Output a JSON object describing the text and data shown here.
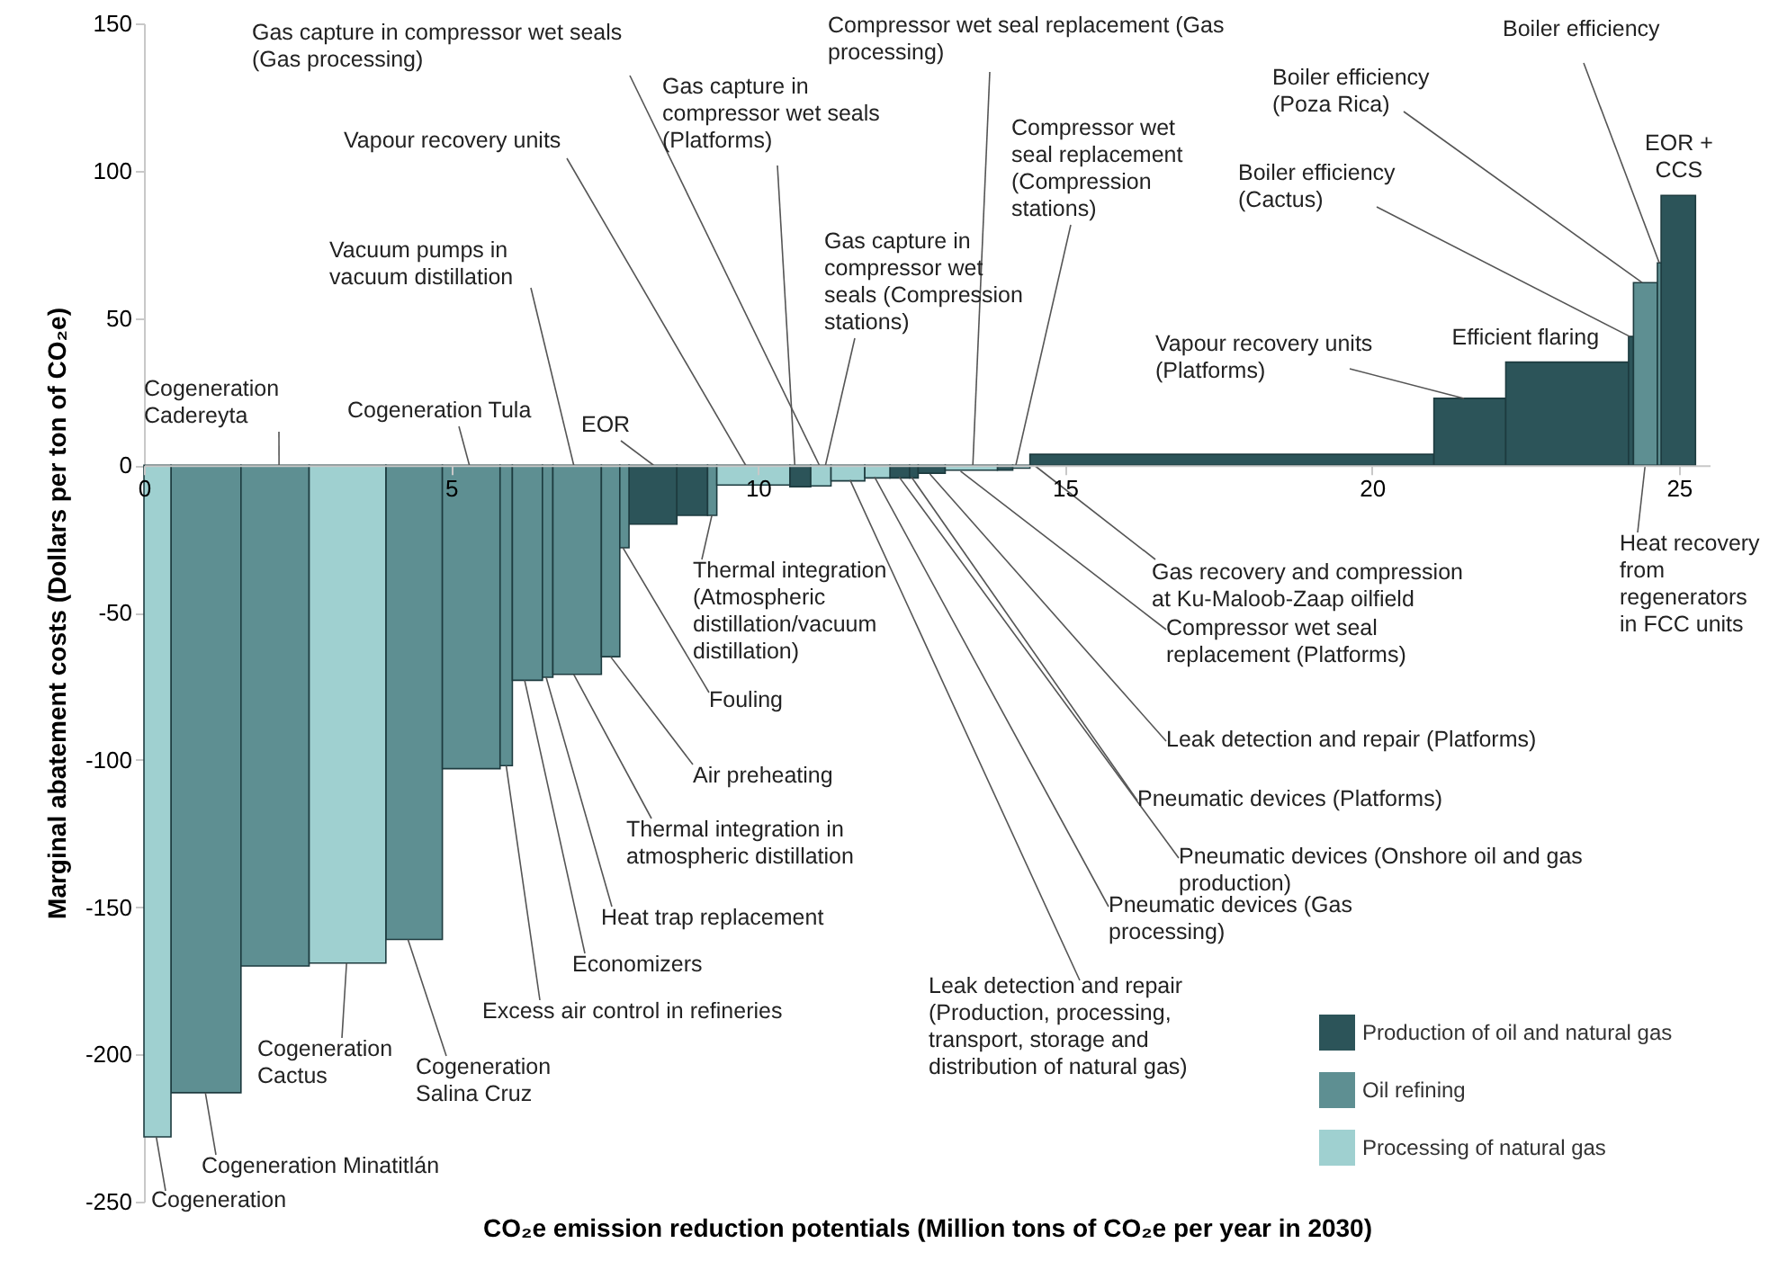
{
  "chart_data": {
    "type": "histogram",
    "xlabel": "CO₂e emission reduction potentials (Million tons of CO₂e per year in 2030)",
    "ylabel": "Marginal abatement costs (Dollars per ton of CO₂e)",
    "bins": [
      0,
      0.44,
      1.58,
      2.69,
      3.94,
      4.86,
      5.8,
      6.0,
      6.49,
      6.66,
      7.45,
      7.75,
      7.9,
      8.68,
      9.18,
      9.33,
      10.52,
      10.86,
      11.19,
      11.74,
      12.15,
      12.47,
      12.61,
      13.05,
      13.9,
      14.15,
      14.43,
      21.01,
      22.18,
      24.18,
      24.26,
      24.65,
      24.71,
      25.27
    ],
    "series": [
      {
        "name": "Production of oil and natural gas",
        "color": "#2c5459",
        "values": [
          null,
          null,
          null,
          null,
          null,
          null,
          null,
          null,
          null,
          null,
          null,
          null,
          -20,
          -17,
          null,
          null,
          -7.3,
          null,
          null,
          null,
          -4.3,
          -4.3,
          -2.7,
          null,
          -1.7,
          null,
          3.7,
          22.7,
          35,
          43.7,
          null,
          null,
          91.6
        ]
      },
      {
        "name": "Oil refining",
        "color": "#5e8f92",
        "values": [
          null,
          -213,
          -170,
          null,
          -161,
          -103,
          -102,
          -73,
          -72,
          -71,
          -65,
          -28,
          null,
          null,
          -17,
          null,
          null,
          null,
          null,
          null,
          null,
          null,
          null,
          null,
          null,
          null,
          null,
          null,
          null,
          null,
          62,
          68.7,
          null
        ]
      },
      {
        "name": "Processing of natural gas",
        "color": "#9fd0d0",
        "values": [
          -228,
          null,
          null,
          -169,
          null,
          null,
          null,
          null,
          null,
          null,
          null,
          null,
          null,
          null,
          null,
          -6.7,
          null,
          -7,
          -5.3,
          -4.3,
          null,
          null,
          null,
          -1.7,
          null,
          -1,
          null,
          null,
          null,
          null,
          null,
          null,
          null
        ]
      }
    ],
    "xlim": [
      0,
      25.5
    ],
    "xticks": [
      0,
      5,
      10,
      15,
      20,
      25
    ],
    "ylim": [
      -250,
      150
    ],
    "yticks": [
      -250,
      -200,
      -150,
      -100,
      -50,
      0,
      50,
      100,
      150
    ],
    "legend": "bottom right",
    "annotations": [
      {
        "text": "Cogeneration",
        "x": 0.2,
        "y": -228
      },
      {
        "text": "Cogeneration Minatitlán",
        "x": 1.0,
        "y": -213
      },
      {
        "text": "Cogeneration Cactus",
        "x": 3.3,
        "y": -169
      },
      {
        "text": "Cogeneration Salina Cruz",
        "x": 4.3,
        "y": -161
      },
      {
        "text": "Excess air control in refineries",
        "x": 5.9,
        "y": -102
      },
      {
        "text": "Economizers",
        "x": 6.2,
        "y": -73
      },
      {
        "text": "Heat trap replacement",
        "x": 6.55,
        "y": -72
      },
      {
        "text": "Thermal integration in atmospheric distillation",
        "x": 7.0,
        "y": -71
      },
      {
        "text": "Air preheating",
        "x": 7.6,
        "y": -65
      },
      {
        "text": "Fouling",
        "x": 7.8,
        "y": -28
      },
      {
        "text": "Thermal integration (Atmospheric distillation/vacuum distillation)",
        "x": 9.25,
        "y": -17
      },
      {
        "text": "EOR",
        "x": 8.3,
        "y": 0
      },
      {
        "text": "Cogeneration Cadereyta",
        "x": 2.2,
        "y": 0
      },
      {
        "text": "Cogeneration Tula",
        "x": 5.3,
        "y": 0
      },
      {
        "text": "Vacuum pumps in vacuum distillation",
        "x": 7.0,
        "y": 0
      },
      {
        "text": "Vapour recovery units",
        "x": 9.8,
        "y": 0
      },
      {
        "text": "Gas capture in compressor wet seals (Gas processing)",
        "x": 11.0,
        "y": 0
      },
      {
        "text": "Gas capture in compressor wet seals (Platforms)",
        "x": 10.6,
        "y": 0
      },
      {
        "text": "Gas capture in compressor wet seals (Compression stations)",
        "x": 11.1,
        "y": 0
      },
      {
        "text": "Compressor wet seal replacement (Gas processing)",
        "x": 13.5,
        "y": 0
      },
      {
        "text": "Compressor wet seal replacement (Compression stations)",
        "x": 14.2,
        "y": 0
      },
      {
        "text": "Vapour recovery units (Platforms)",
        "x": 21.5,
        "y": 22.7
      },
      {
        "text": "Efficient flaring",
        "x": 22.5,
        "y": 35
      },
      {
        "text": "Boiler efficiency (Cactus)",
        "x": 24.2,
        "y": 43.7
      },
      {
        "text": "Boiler efficiency (Poza Rica)",
        "x": 24.4,
        "y": 62
      },
      {
        "text": "Boiler efficiency",
        "x": 24.68,
        "y": 68.7
      },
      {
        "text": "EOR + CCS",
        "x": 25.0,
        "y": 91.6
      },
      {
        "text": "Heat recovery from regenerators in FCC units",
        "x": 24.45,
        "y": 0
      },
      {
        "text": "Gas recovery and compression at Ku-Maloob-Zaap oilfield",
        "x": 14.5,
        "y": 0
      },
      {
        "text": "Compressor wet seal replacement (Platforms)",
        "x": 13.3,
        "y": -2
      },
      {
        "text": "Leak detection and repair (Platforms)",
        "x": 12.8,
        "y": -3
      },
      {
        "text": "Pneumatic devices (Platforms)",
        "x": 12.5,
        "y": -4
      },
      {
        "text": "Pneumatic devices (Onshore oil and gas production)",
        "x": 12.3,
        "y": -4
      },
      {
        "text": "Pneumatic devices (Gas processing)",
        "x": 11.9,
        "y": -4
      },
      {
        "text": "Leak detection and repair (Production, processing, transport, storage and distribution of natural gas)",
        "x": 11.5,
        "y": -5
      }
    ]
  }
}
